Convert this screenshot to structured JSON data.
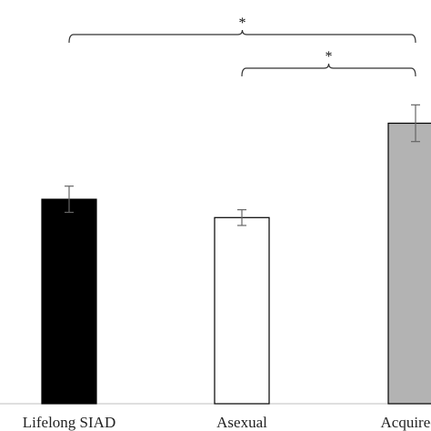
{
  "chart_data": {
    "type": "bar",
    "categories": [
      "Lifelong SIAD",
      "Asexual",
      "Acquired S"
    ],
    "values": [
      3.9,
      3.55,
      5.35
    ],
    "errors": [
      0.25,
      0.15,
      0.35
    ],
    "ylim": [
      0,
      7.7
    ],
    "bar_colors": [
      "#000000",
      "#ffffff",
      "#b3b3b3"
    ],
    "bar_edge_colors": [
      "#000000",
      "#000000",
      "#000000"
    ],
    "error_bar_color": "#666666",
    "title": "",
    "xlabel": "",
    "ylabel": "",
    "significance": [
      {
        "from": 0,
        "to": 2,
        "label": "*"
      },
      {
        "from": 1,
        "to": 2,
        "label": "*"
      }
    ]
  }
}
